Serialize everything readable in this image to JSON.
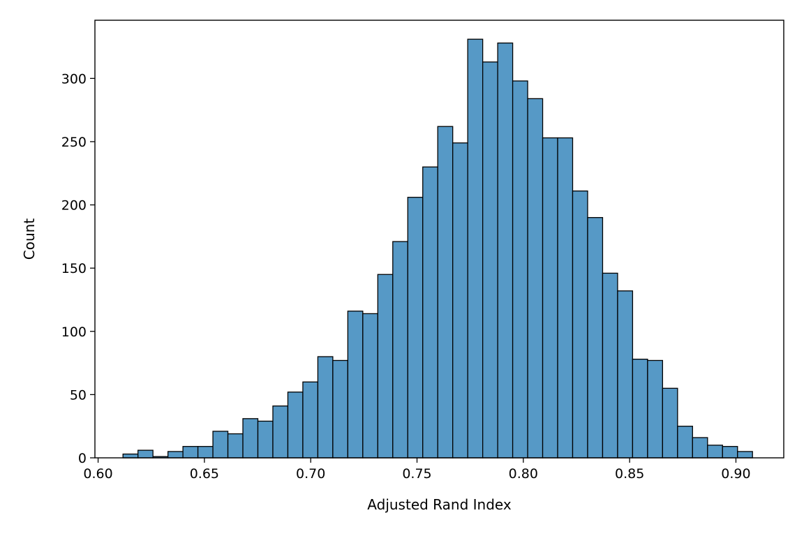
{
  "chart_data": {
    "type": "bar",
    "title": "",
    "xlabel": "Adjusted Rand Index",
    "ylabel": "Count",
    "xlim": [
      0.5985,
      0.9225
    ],
    "ylim": [
      0,
      346
    ],
    "xticks": [
      0.6,
      0.65,
      0.7,
      0.75,
      0.8,
      0.85,
      0.9
    ],
    "xtick_labels": [
      "0.60",
      "0.65",
      "0.70",
      "0.75",
      "0.80",
      "0.85",
      "0.90"
    ],
    "yticks": [
      0,
      50,
      100,
      150,
      200,
      250,
      300
    ],
    "ytick_labels": [
      "0",
      "50",
      "100",
      "150",
      "200",
      "250",
      "300"
    ],
    "grid": false,
    "legend": "none",
    "bin_start": 0.6117,
    "bin_width": 0.00705,
    "counts": [
      3,
      6,
      1,
      5,
      9,
      9,
      21,
      19,
      31,
      29,
      41,
      52,
      60,
      80,
      77,
      116,
      114,
      145,
      171,
      206,
      230,
      262,
      249,
      331,
      313,
      328,
      298,
      284,
      253,
      253,
      211,
      190,
      146,
      132,
      78,
      77,
      55,
      25,
      16,
      10,
      9,
      5
    ],
    "colors": {
      "bar_fill": "#5699c6",
      "bar_edge": "#000000"
    }
  }
}
